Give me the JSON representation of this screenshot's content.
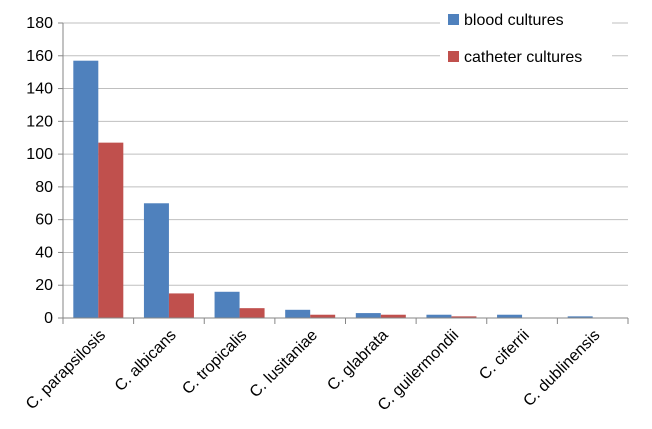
{
  "chart_data": {
    "type": "bar",
    "categories": [
      "C. parapsilosis",
      "C. albicans",
      "C. tropicalis",
      "C. lusitaniae",
      "C. glabrata",
      "C. guilermondii",
      "C. ciferrii",
      "C. dublinensis"
    ],
    "series": [
      {
        "name": "blood cultures",
        "values": [
          157,
          70,
          16,
          5,
          3,
          2,
          2,
          1
        ],
        "color": "#4F81BD"
      },
      {
        "name": "catheter cultures",
        "values": [
          107,
          15,
          6,
          2,
          2,
          1,
          0,
          0
        ],
        "color": "#C0504D"
      }
    ],
    "ylim": [
      0,
      180
    ],
    "yticks": [
      0,
      20,
      40,
      60,
      80,
      100,
      120,
      140,
      160,
      180
    ],
    "grid": true,
    "legend_position": "top-right",
    "gridline_color": "#BFBFBF",
    "axis_color": "#868686"
  }
}
